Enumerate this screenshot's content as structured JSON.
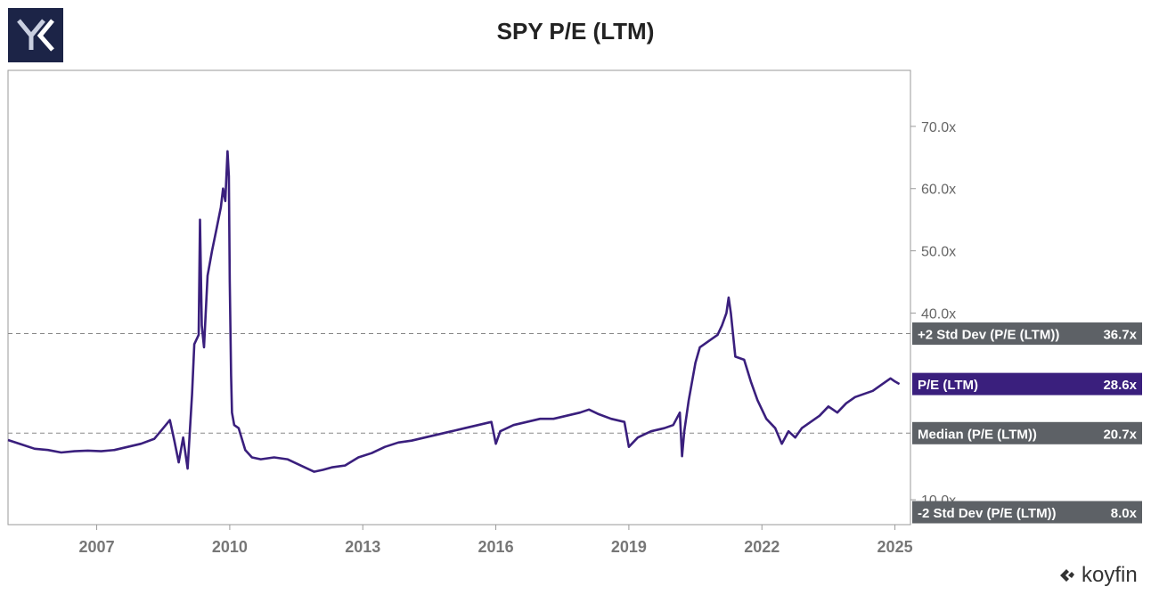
{
  "header": {
    "title": "SPY P/E (LTM)"
  },
  "brand": {
    "name": "koyfin",
    "icon": "koyfin-logo-icon"
  },
  "logo": {
    "icon": "yk-logo-icon",
    "bg": "#1c2447"
  },
  "colors": {
    "line": "#3a1f7d",
    "label_gray": "#5d6166",
    "label_purple": "#3a1f7d",
    "grid_dash": "#888888"
  },
  "chart_data": {
    "type": "line",
    "title": "SPY P/E (LTM)",
    "x_start": 2005.0,
    "x_end": 2025.35,
    "ylim": [
      6.0,
      79.0
    ],
    "y_ticks": [
      {
        "value": 10,
        "label": "10.0x"
      },
      {
        "value": 40,
        "label": "40.0x"
      },
      {
        "value": 50,
        "label": "50.0x"
      },
      {
        "value": 60,
        "label": "60.0x"
      },
      {
        "value": 70,
        "label": "70.0x"
      }
    ],
    "x_ticks": [
      {
        "value": 2007,
        "label": "2007"
      },
      {
        "value": 2010,
        "label": "2010"
      },
      {
        "value": 2013,
        "label": "2013"
      },
      {
        "value": 2016,
        "label": "2016"
      },
      {
        "value": 2019,
        "label": "2019"
      },
      {
        "value": 2022,
        "label": "2022"
      },
      {
        "value": 2025,
        "label": "2025"
      }
    ],
    "reference_lines": [
      {
        "name": "+2 Std Dev (P/E (LTM))",
        "value": 36.7,
        "label": "36.7x",
        "dashed": true,
        "style": "gray"
      },
      {
        "name": "Median (P/E (LTM))",
        "value": 20.7,
        "label": "20.7x",
        "dashed": true,
        "style": "gray"
      },
      {
        "name": "-2 Std Dev (P/E (LTM))",
        "value": 8.0,
        "label": "8.0x",
        "dashed": false,
        "style": "gray"
      }
    ],
    "current": {
      "name": "P/E (LTM)",
      "value": 28.6,
      "label": "28.6x",
      "style": "purple"
    },
    "series": [
      {
        "name": "P/E (LTM)",
        "x": [
          2005.0,
          2005.3,
          2005.6,
          2005.9,
          2006.2,
          2006.5,
          2006.8,
          2007.1,
          2007.4,
          2007.7,
          2008.0,
          2008.3,
          2008.5,
          2008.65,
          2008.75,
          2008.85,
          2008.95,
          2009.05,
          2009.15,
          2009.2,
          2009.3,
          2009.33,
          2009.37,
          2009.42,
          2009.5,
          2009.6,
          2009.7,
          2009.8,
          2009.85,
          2009.9,
          2009.95,
          2009.98,
          2010.0,
          2010.03,
          2010.05,
          2010.1,
          2010.2,
          2010.35,
          2010.5,
          2010.7,
          2011.0,
          2011.3,
          2011.6,
          2011.9,
          2012.1,
          2012.3,
          2012.6,
          2012.9,
          2013.2,
          2013.5,
          2013.8,
          2014.1,
          2014.4,
          2014.7,
          2015.0,
          2015.3,
          2015.6,
          2015.9,
          2016.0,
          2016.1,
          2016.4,
          2016.7,
          2017.0,
          2017.3,
          2017.6,
          2017.9,
          2018.1,
          2018.3,
          2018.6,
          2018.9,
          2019.0,
          2019.2,
          2019.5,
          2019.8,
          2020.0,
          2020.15,
          2020.2,
          2020.25,
          2020.35,
          2020.5,
          2020.6,
          2020.8,
          2021.0,
          2021.1,
          2021.2,
          2021.25,
          2021.3,
          2021.4,
          2021.6,
          2021.75,
          2021.9,
          2022.1,
          2022.3,
          2022.45,
          2022.6,
          2022.75,
          2022.9,
          2023.1,
          2023.3,
          2023.5,
          2023.7,
          2023.9,
          2024.1,
          2024.3,
          2024.5,
          2024.7,
          2024.9,
          2025.0,
          2025.1
        ],
        "values": [
          19.6,
          18.9,
          18.2,
          18.0,
          17.6,
          17.8,
          17.9,
          17.8,
          18.0,
          18.5,
          19.0,
          19.8,
          21.5,
          22.8,
          19.5,
          16.0,
          20.0,
          15.0,
          27.0,
          35.0,
          36.5,
          55.0,
          38.0,
          34.5,
          46.0,
          50.0,
          53.5,
          57.0,
          60.0,
          58.0,
          66.0,
          62.0,
          45.0,
          30.0,
          24.0,
          22.0,
          21.5,
          18.0,
          16.8,
          16.5,
          16.8,
          16.5,
          15.5,
          14.5,
          14.8,
          15.2,
          15.5,
          16.8,
          17.5,
          18.5,
          19.2,
          19.5,
          20.0,
          20.5,
          21.0,
          21.5,
          22.0,
          22.5,
          19.0,
          21.0,
          22.0,
          22.5,
          23.0,
          23.0,
          23.5,
          24.0,
          24.5,
          23.8,
          23.0,
          22.5,
          18.5,
          20.0,
          21.0,
          21.5,
          22.0,
          24.0,
          17.0,
          21.0,
          26.0,
          32.0,
          34.5,
          35.5,
          36.5,
          38.0,
          40.0,
          42.5,
          40.0,
          33.0,
          32.5,
          29.0,
          26.0,
          23.0,
          21.5,
          19.0,
          21.0,
          20.0,
          21.5,
          22.5,
          23.5,
          25.0,
          24.0,
          25.5,
          26.5,
          27.0,
          27.5,
          28.5,
          29.5,
          29.0,
          28.6
        ]
      }
    ]
  }
}
